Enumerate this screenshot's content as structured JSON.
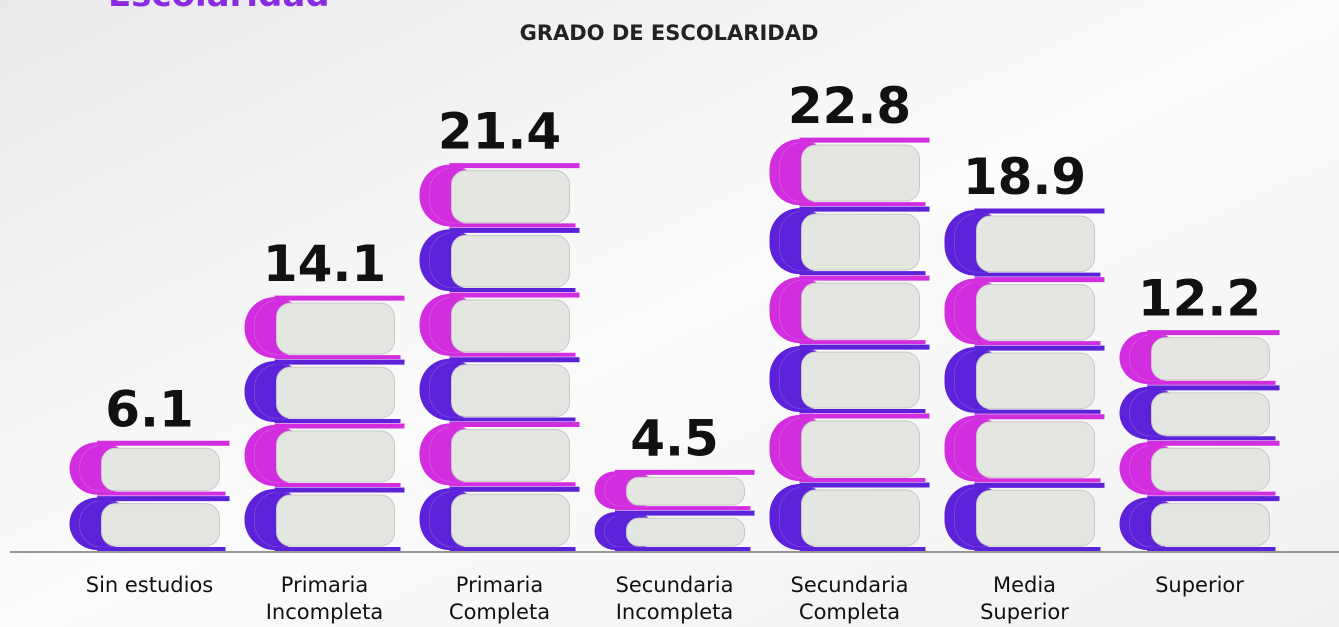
{
  "chart_data": {
    "type": "bar",
    "heading": "Escolaridad",
    "title": "GRADO DE ESCOLARIDAD",
    "categories": [
      [
        "Sin estudios"
      ],
      [
        "Primaria",
        "Incompleta"
      ],
      [
        "Primaria",
        "Completa"
      ],
      [
        "Secundaria",
        "Incompleta"
      ],
      [
        "Secundaria",
        "Completa"
      ],
      [
        "Media",
        "Superior"
      ],
      [
        "Superior"
      ]
    ],
    "values": [
      6.1,
      14.1,
      21.4,
      4.5,
      22.8,
      18.9,
      12.2
    ],
    "colors": [
      "#5b22d9",
      "#d22ddf"
    ]
  }
}
